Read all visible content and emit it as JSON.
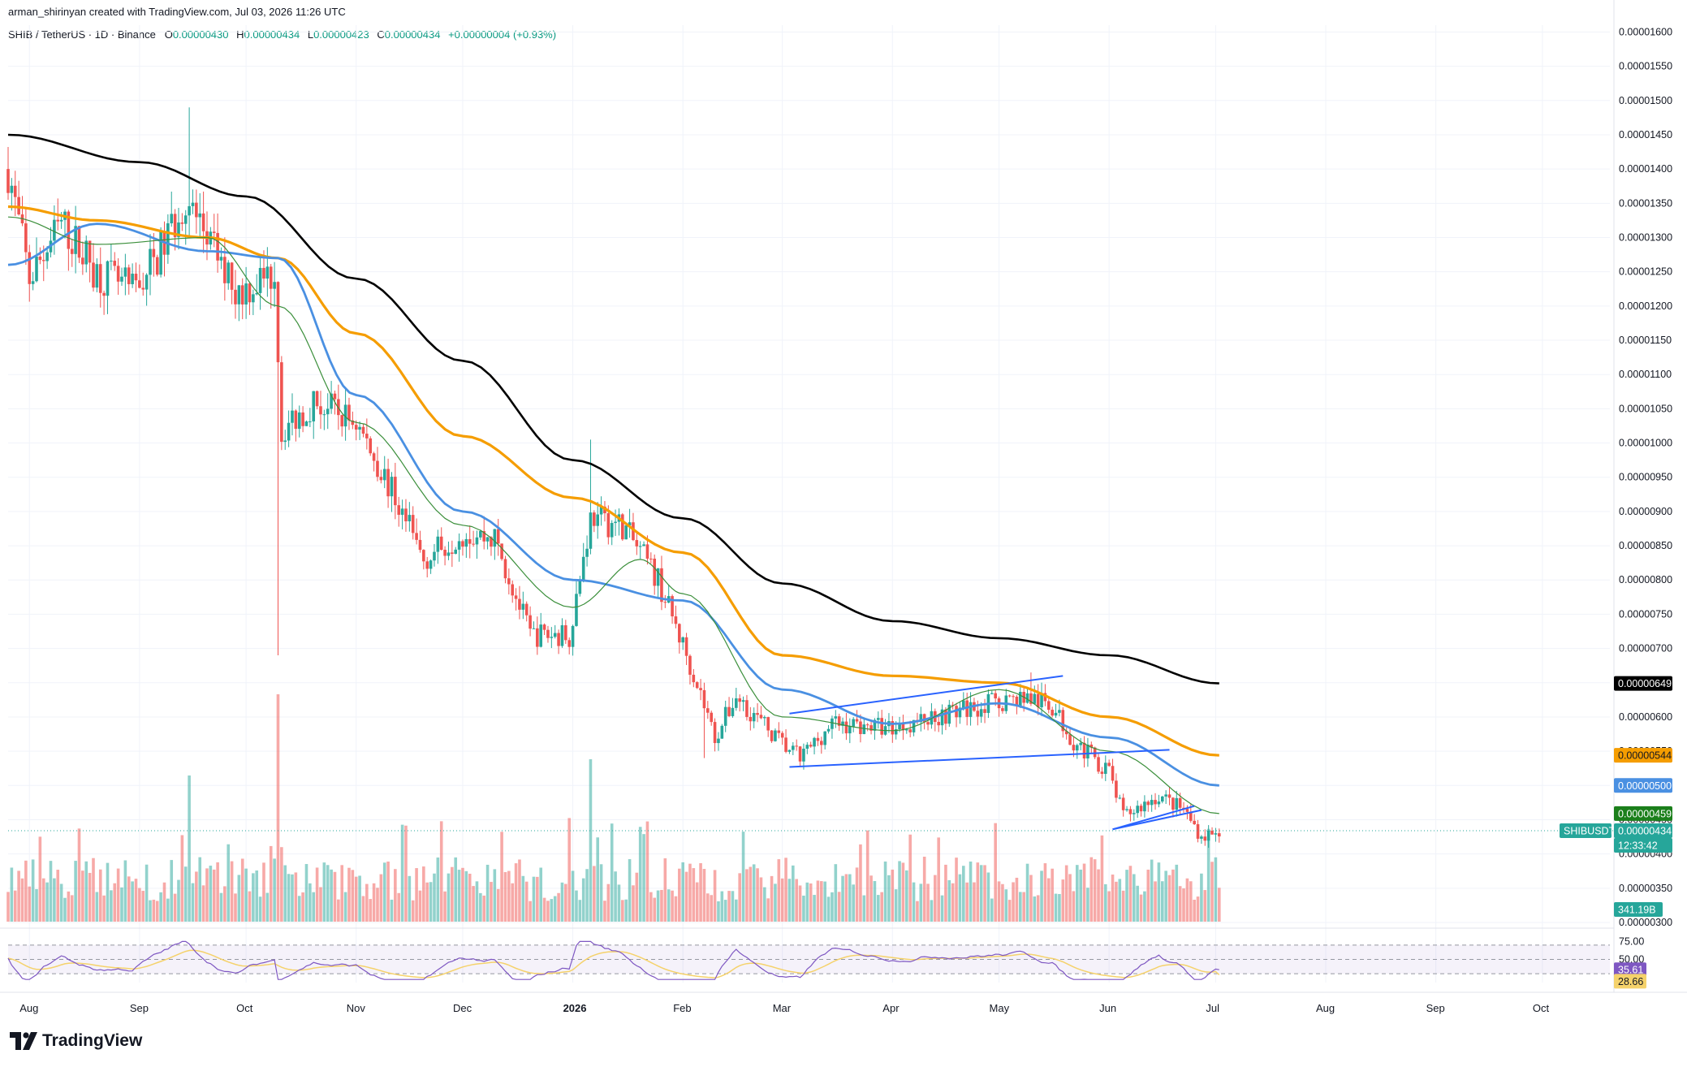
{
  "header": {
    "caption": "arman_shirinyan created with TradingView.com, Jul 03, 2026 11:26 UTC",
    "symbol": "SHIB / TetherUS · 1D · Binance",
    "open_key": "O",
    "open": "0.00000430",
    "high_key": "H",
    "high": "0.00000434",
    "low_key": "L",
    "low": "0.00000423",
    "close_key": "C",
    "close": "0.00000434",
    "change": "+0.00000004 (+0.93%)"
  },
  "price_axis": {
    "ticks": [
      "0.00001600",
      "0.00001550",
      "0.00001500",
      "0.00001450",
      "0.00001400",
      "0.00001350",
      "0.00001300",
      "0.00001250",
      "0.00001200",
      "0.00001150",
      "0.00001100",
      "0.00001050",
      "0.00001000",
      "0.00000950",
      "0.00000900",
      "0.00000850",
      "0.00000800",
      "0.00000750",
      "0.00000700",
      "0.00000650",
      "0.00000600",
      "0.00000550",
      "0.00000500",
      "0.00000450",
      "0.00000400",
      "0.00000350",
      "0.00000300"
    ],
    "badges": {
      "ma200": "0.00000649",
      "ma100": "0.00000544",
      "ma50": "0.00000500",
      "ma20": "0.00000459",
      "symbol_tag": "SHIBUSDT",
      "last_price": "0.00000434",
      "countdown": "12:33:42",
      "volume": "341.19B"
    }
  },
  "rsi_axis": {
    "ticks": [
      "75.00",
      "50.00"
    ],
    "rsi_value": "35.61",
    "rsi_ma_value": "28.66"
  },
  "time_axis": {
    "labels": [
      {
        "text": "Aug",
        "bold": false
      },
      {
        "text": "Sep",
        "bold": false
      },
      {
        "text": "Oct",
        "bold": false
      },
      {
        "text": "Nov",
        "bold": false
      },
      {
        "text": "Dec",
        "bold": false
      },
      {
        "text": "2026",
        "bold": true
      },
      {
        "text": "Feb",
        "bold": false
      },
      {
        "text": "Mar",
        "bold": false
      },
      {
        "text": "Apr",
        "bold": false
      },
      {
        "text": "May",
        "bold": false
      },
      {
        "text": "Jun",
        "bold": false
      },
      {
        "text": "Jul",
        "bold": false
      },
      {
        "text": "Aug",
        "bold": false
      },
      {
        "text": "Sep",
        "bold": false
      },
      {
        "text": "Oct",
        "bold": false
      }
    ]
  },
  "branding": {
    "logo_text": "TradingView"
  },
  "colors": {
    "up": "#26a69a",
    "down": "#ef5350",
    "ma200": "#000000",
    "ma100": "#f59d00",
    "ma50": "#4a90e2",
    "ma20": "#3b8f3b",
    "rsi": "#7e57c2",
    "rsi_ma": "#f5d26b",
    "trendline": "#2962ff"
  },
  "chart_data": {
    "type": "candlestick",
    "symbol": "SHIBUSDT",
    "interval": "1D",
    "x_range": [
      "2025-07-26",
      "2026-10-20"
    ],
    "y_range": [
      3e-06,
      1.61e-05
    ],
    "moving_averages": {
      "ma200": [
        [
          "2025-07-26",
          1.45e-05
        ],
        [
          "2025-09-01",
          1.41e-05
        ],
        [
          "2025-10-01",
          1.36e-05
        ],
        [
          "2025-11-01",
          1.24e-05
        ],
        [
          "2025-12-01",
          1.12e-05
        ],
        [
          "2026-01-01",
          9.75e-06
        ],
        [
          "2026-02-01",
          8.9e-06
        ],
        [
          "2026-03-01",
          7.95e-06
        ],
        [
          "2026-04-01",
          7.4e-06
        ],
        [
          "2026-05-01",
          7.15e-06
        ],
        [
          "2026-06-01",
          6.9e-06
        ],
        [
          "2026-07-02",
          6.49e-06
        ]
      ],
      "ma100": [
        [
          "2025-07-26",
          1.345e-05
        ],
        [
          "2025-08-20",
          1.325e-05
        ],
        [
          "2025-09-20",
          1.3e-05
        ],
        [
          "2025-10-10",
          1.27e-05
        ],
        [
          "2025-11-01",
          1.16e-05
        ],
        [
          "2025-12-01",
          1.01e-05
        ],
        [
          "2026-01-01",
          9.2e-06
        ],
        [
          "2026-02-01",
          8.4e-06
        ],
        [
          "2026-03-01",
          6.9e-06
        ],
        [
          "2026-04-01",
          6.6e-06
        ],
        [
          "2026-05-01",
          6.5e-06
        ],
        [
          "2026-06-01",
          6e-06
        ],
        [
          "2026-07-02",
          5.44e-06
        ]
      ],
      "ma50": [
        [
          "2025-07-26",
          1.26e-05
        ],
        [
          "2025-08-20",
          1.32e-05
        ],
        [
          "2025-09-20",
          1.28e-05
        ],
        [
          "2025-10-10",
          1.27e-05
        ],
        [
          "2025-11-01",
          1.07e-05
        ],
        [
          "2025-12-01",
          9e-06
        ],
        [
          "2026-01-01",
          8e-06
        ],
        [
          "2026-02-01",
          7.7e-06
        ],
        [
          "2026-03-01",
          6.4e-06
        ],
        [
          "2026-04-01",
          5.9e-06
        ],
        [
          "2026-05-01",
          6.2e-06
        ],
        [
          "2026-06-01",
          5.7e-06
        ],
        [
          "2026-07-02",
          5e-06
        ]
      ],
      "ma20": [
        [
          "2025-07-26",
          1.33e-05
        ],
        [
          "2025-08-20",
          1.29e-05
        ],
        [
          "2025-09-20",
          1.3e-05
        ],
        [
          "2025-10-10",
          1.2e-05
        ],
        [
          "2025-11-01",
          1.03e-05
        ],
        [
          "2025-12-01",
          8.8e-06
        ],
        [
          "2026-01-01",
          7.6e-06
        ],
        [
          "2026-01-20",
          8.3e-06
        ],
        [
          "2026-02-01",
          7.8e-06
        ],
        [
          "2026-03-01",
          6e-06
        ],
        [
          "2026-04-01",
          5.8e-06
        ],
        [
          "2026-05-01",
          6.4e-06
        ],
        [
          "2026-06-01",
          5.5e-06
        ],
        [
          "2026-07-02",
          4.59e-06
        ]
      ]
    },
    "trendlines": [
      {
        "from": [
          "2026-03-03",
          6.05e-06
        ],
        "to": [
          "2026-05-19",
          6.6e-06
        ]
      },
      {
        "from": [
          "2026-03-03",
          5.27e-06
        ],
        "to": [
          "2026-06-18",
          5.52e-06
        ]
      },
      {
        "from": [
          "2026-06-02",
          4.36e-06
        ],
        "to": [
          "2026-06-25",
          4.7e-06
        ]
      },
      {
        "from": [
          "2026-06-02",
          4.36e-06
        ],
        "to": [
          "2026-06-27",
          4.64e-06
        ]
      }
    ],
    "last_price": 4.34e-06,
    "rsi": {
      "levels": [
        30,
        50,
        70
      ],
      "value": 35.61,
      "ma_value": 28.66
    }
  }
}
